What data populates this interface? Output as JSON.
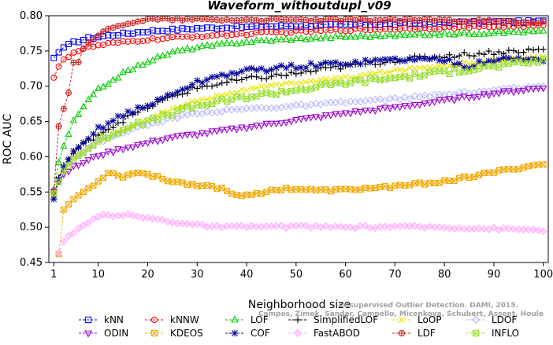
{
  "chart_data": {
    "type": "line",
    "title": "Waveform_withoutdupl_v09",
    "xlabel": "Neighborhood size",
    "ylabel": "ROC AUC",
    "xlim": [
      0,
      101
    ],
    "ylim": [
      0.45,
      0.8
    ],
    "xticks": [
      1,
      10,
      20,
      30,
      40,
      50,
      60,
      70,
      80,
      90,
      100
    ],
    "yticks": [
      0.45,
      0.5,
      0.55,
      0.6,
      0.65,
      0.7,
      0.75,
      0.8
    ],
    "grid": false,
    "legend_position": "bottom",
    "credit": {
      "line1": "Unsupervised Outlier Detection. DAMI, 2015.",
      "line2": "Campos, Zimek, Sander, Campello, Micenkova, Schubert, Assent, Houle"
    },
    "series": [
      {
        "name": "kNN",
        "color": "#0000ff",
        "marker": "square",
        "anchors": [
          [
            1,
            0.74
          ],
          [
            2,
            0.748
          ],
          [
            3,
            0.755
          ],
          [
            5,
            0.762
          ],
          [
            8,
            0.768
          ],
          [
            12,
            0.772
          ],
          [
            20,
            0.778
          ],
          [
            30,
            0.782
          ],
          [
            45,
            0.785
          ],
          [
            60,
            0.787
          ],
          [
            80,
            0.79
          ],
          [
            100,
            0.792
          ]
        ]
      },
      {
        "name": "kNNW",
        "color": "#ff0000",
        "marker": "circle",
        "anchors": [
          [
            1,
            0.712
          ],
          [
            2,
            0.728
          ],
          [
            3,
            0.738
          ],
          [
            5,
            0.748
          ],
          [
            8,
            0.755
          ],
          [
            12,
            0.76
          ],
          [
            20,
            0.766
          ],
          [
            30,
            0.771
          ],
          [
            45,
            0.776
          ],
          [
            60,
            0.78
          ],
          [
            80,
            0.783
          ],
          [
            100,
            0.786
          ]
        ]
      },
      {
        "name": "LOF",
        "color": "#00cc00",
        "marker": "triangle-up",
        "anchors": [
          [
            1,
            0.553
          ],
          [
            2,
            0.592
          ],
          [
            3,
            0.615
          ],
          [
            5,
            0.65
          ],
          [
            8,
            0.68
          ],
          [
            10,
            0.695
          ],
          [
            15,
            0.718
          ],
          [
            20,
            0.735
          ],
          [
            25,
            0.748
          ],
          [
            30,
            0.755
          ],
          [
            40,
            0.763
          ],
          [
            50,
            0.767
          ],
          [
            60,
            0.77
          ],
          [
            70,
            0.772
          ],
          [
            80,
            0.774
          ],
          [
            90,
            0.776
          ],
          [
            100,
            0.778
          ]
        ]
      },
      {
        "name": "SimplifiedLOF",
        "color": "#000000",
        "marker": "plus",
        "anchors": [
          [
            1,
            0.54
          ],
          [
            2,
            0.57
          ],
          [
            3,
            0.588
          ],
          [
            5,
            0.605
          ],
          [
            8,
            0.622
          ],
          [
            10,
            0.632
          ],
          [
            15,
            0.652
          ],
          [
            20,
            0.67
          ],
          [
            25,
            0.685
          ],
          [
            30,
            0.698
          ],
          [
            40,
            0.71
          ],
          [
            50,
            0.718
          ],
          [
            60,
            0.728
          ],
          [
            70,
            0.737
          ],
          [
            80,
            0.743
          ],
          [
            90,
            0.748
          ],
          [
            100,
            0.752
          ]
        ]
      },
      {
        "name": "LoOP",
        "color": "#e6e600",
        "marker": "cross",
        "anchors": [
          [
            1,
            0.545
          ],
          [
            3,
            0.58
          ],
          [
            5,
            0.598
          ],
          [
            8,
            0.612
          ],
          [
            10,
            0.62
          ],
          [
            15,
            0.638
          ],
          [
            20,
            0.652
          ],
          [
            25,
            0.668
          ],
          [
            30,
            0.68
          ],
          [
            40,
            0.695
          ],
          [
            50,
            0.705
          ],
          [
            60,
            0.712
          ],
          [
            70,
            0.722
          ],
          [
            80,
            0.73
          ],
          [
            90,
            0.736
          ],
          [
            100,
            0.742
          ]
        ]
      },
      {
        "name": "LDOF",
        "color": "#b8b8ff",
        "marker": "diamond",
        "anchors": [
          [
            1,
            0.548
          ],
          [
            3,
            0.585
          ],
          [
            5,
            0.6
          ],
          [
            8,
            0.612
          ],
          [
            10,
            0.62
          ],
          [
            15,
            0.635
          ],
          [
            20,
            0.645
          ],
          [
            25,
            0.655
          ],
          [
            30,
            0.662
          ],
          [
            40,
            0.668
          ],
          [
            50,
            0.672
          ],
          [
            60,
            0.677
          ],
          [
            70,
            0.682
          ],
          [
            80,
            0.688
          ],
          [
            90,
            0.694
          ],
          [
            100,
            0.7
          ]
        ]
      },
      {
        "name": "ODIN",
        "color": "#9900cc",
        "marker": "triangle-down",
        "anchors": [
          [
            1,
            0.55
          ],
          [
            2,
            0.565
          ],
          [
            3,
            0.575
          ],
          [
            5,
            0.585
          ],
          [
            8,
            0.595
          ],
          [
            10,
            0.602
          ],
          [
            15,
            0.612
          ],
          [
            20,
            0.62
          ],
          [
            25,
            0.628
          ],
          [
            30,
            0.632
          ],
          [
            40,
            0.642
          ],
          [
            50,
            0.652
          ],
          [
            60,
            0.662
          ],
          [
            70,
            0.67
          ],
          [
            80,
            0.68
          ],
          [
            90,
            0.69
          ],
          [
            100,
            0.698
          ]
        ]
      },
      {
        "name": "KDEOS",
        "color": "#f0a800",
        "marker": "square-x",
        "anchors": [
          [
            2,
            0.462
          ],
          [
            3,
            0.525
          ],
          [
            5,
            0.54
          ],
          [
            8,
            0.555
          ],
          [
            10,
            0.565
          ],
          [
            12,
            0.578
          ],
          [
            15,
            0.572
          ],
          [
            18,
            0.578
          ],
          [
            20,
            0.575
          ],
          [
            25,
            0.565
          ],
          [
            30,
            0.56
          ],
          [
            35,
            0.555
          ],
          [
            38,
            0.545
          ],
          [
            42,
            0.548
          ],
          [
            48,
            0.555
          ],
          [
            55,
            0.552
          ],
          [
            60,
            0.553
          ],
          [
            70,
            0.558
          ],
          [
            80,
            0.565
          ],
          [
            90,
            0.578
          ],
          [
            100,
            0.59
          ]
        ]
      },
      {
        "name": "COF",
        "color": "#000099",
        "marker": "asterisk",
        "anchors": [
          [
            1,
            0.54
          ],
          [
            2,
            0.568
          ],
          [
            3,
            0.585
          ],
          [
            5,
            0.605
          ],
          [
            8,
            0.625
          ],
          [
            10,
            0.64
          ],
          [
            15,
            0.66
          ],
          [
            20,
            0.672
          ],
          [
            25,
            0.69
          ],
          [
            30,
            0.705
          ],
          [
            35,
            0.716
          ],
          [
            40,
            0.722
          ],
          [
            50,
            0.728
          ],
          [
            60,
            0.733
          ],
          [
            70,
            0.738
          ],
          [
            80,
            0.738
          ],
          [
            85,
            0.728
          ],
          [
            90,
            0.738
          ],
          [
            100,
            0.738
          ]
        ]
      },
      {
        "name": "FastABOD",
        "color": "#ffaaff",
        "marker": "diamond-filled",
        "anchors": [
          [
            2,
            0.463
          ],
          [
            3,
            0.48
          ],
          [
            5,
            0.492
          ],
          [
            8,
            0.506
          ],
          [
            10,
            0.516
          ],
          [
            15,
            0.518
          ],
          [
            20,
            0.513
          ],
          [
            25,
            0.508
          ],
          [
            30,
            0.503
          ],
          [
            35,
            0.5
          ],
          [
            40,
            0.501
          ],
          [
            50,
            0.501
          ],
          [
            60,
            0.5
          ],
          [
            70,
            0.501
          ],
          [
            80,
            0.5
          ],
          [
            90,
            0.498
          ],
          [
            100,
            0.496
          ]
        ]
      },
      {
        "name": "LDF",
        "color": "#cc2222",
        "marker": "circle-plus",
        "anchors": [
          [
            1,
            0.552
          ],
          [
            2,
            0.643
          ],
          [
            3,
            0.668
          ],
          [
            4,
            0.692
          ],
          [
            5,
            0.732
          ],
          [
            6,
            0.735
          ],
          [
            7,
            0.755
          ],
          [
            9,
            0.768
          ],
          [
            12,
            0.78
          ],
          [
            16,
            0.79
          ],
          [
            20,
            0.795
          ],
          [
            30,
            0.795
          ],
          [
            40,
            0.794
          ],
          [
            50,
            0.794
          ],
          [
            60,
            0.794
          ],
          [
            70,
            0.794
          ],
          [
            80,
            0.794
          ],
          [
            90,
            0.792
          ],
          [
            100,
            0.79
          ]
        ]
      },
      {
        "name": "INFLO",
        "color": "#99dd33",
        "marker": "square-x",
        "anchors": [
          [
            1,
            0.548
          ],
          [
            3,
            0.58
          ],
          [
            5,
            0.596
          ],
          [
            8,
            0.612
          ],
          [
            10,
            0.622
          ],
          [
            15,
            0.64
          ],
          [
            20,
            0.65
          ],
          [
            25,
            0.662
          ],
          [
            30,
            0.672
          ],
          [
            40,
            0.685
          ],
          [
            50,
            0.695
          ],
          [
            60,
            0.705
          ],
          [
            70,
            0.712
          ],
          [
            80,
            0.72
          ],
          [
            90,
            0.728
          ],
          [
            100,
            0.736
          ]
        ]
      }
    ],
    "legend_order": [
      [
        "kNN",
        "kNNW",
        "LOF",
        "SimplifiedLOF",
        "LoOP",
        "LDOF"
      ],
      [
        "ODIN",
        "KDEOS",
        "COF",
        "FastABOD",
        "LDF",
        "INFLO"
      ]
    ]
  }
}
